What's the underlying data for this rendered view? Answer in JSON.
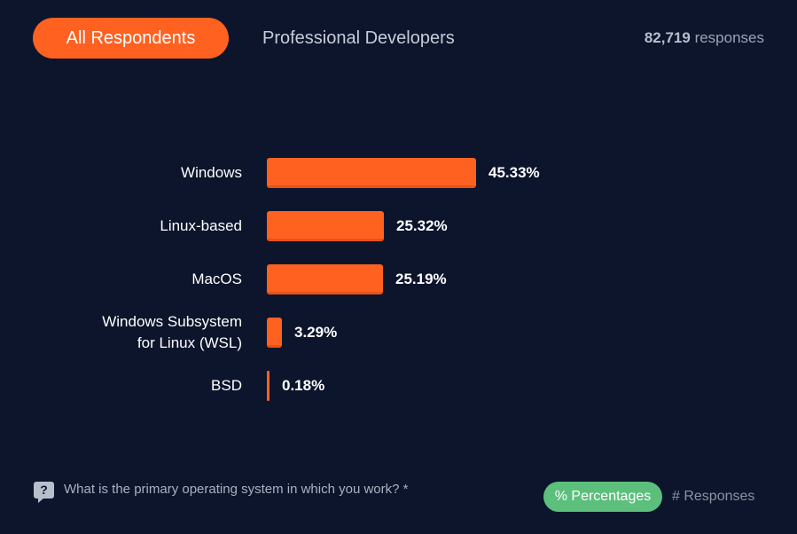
{
  "tabs": {
    "active_label": "All Respondents",
    "inactive_label": "Professional Developers"
  },
  "responses": {
    "count": "82,719",
    "suffix": "responses"
  },
  "chart_data": {
    "type": "bar",
    "orientation": "horizontal",
    "categories": [
      [
        "Windows"
      ],
      [
        "Linux-based"
      ],
      [
        "MacOS"
      ],
      [
        "Windows Subsystem",
        "for Linux (WSL)"
      ],
      [
        "BSD"
      ]
    ],
    "values": [
      45.33,
      25.32,
      25.19,
      3.29,
      0.18
    ],
    "value_labels": [
      "45.33%",
      "25.32%",
      "25.19%",
      "3.29%",
      "0.18%"
    ],
    "unit": "%",
    "xlim": [
      0,
      100
    ],
    "grid": false,
    "bar_color": "#ff6121"
  },
  "footer": {
    "question_icon": "question-icon",
    "question": "What is the primary operating system in which you work? *",
    "toggle_active": "% Percentages",
    "toggle_inactive": "# Responses"
  },
  "colors": {
    "background": "#0c152c",
    "accent": "#ff6121",
    "toggle": "#5cbf7c"
  }
}
